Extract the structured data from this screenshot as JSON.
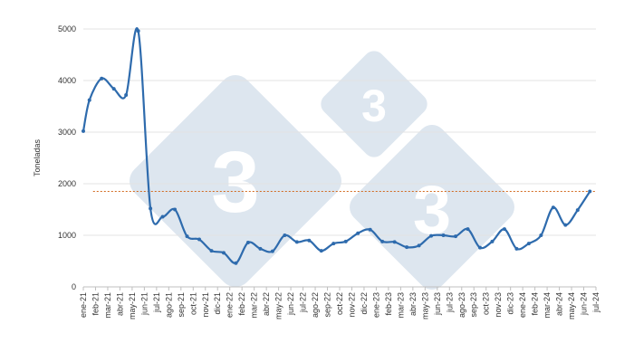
{
  "chart_data": {
    "type": "line",
    "title": "",
    "xlabel": "",
    "ylabel": "Toneladas",
    "ylim": [
      0,
      5000
    ],
    "yticks": [
      0,
      1000,
      2000,
      3000,
      4000,
      5000
    ],
    "grid": true,
    "legend": "none",
    "categories": [
      "ene-21",
      "feb-21",
      "mar-21",
      "abr-21",
      "may-21",
      "jun-21",
      "jul-21",
      "ago-21",
      "sep-21",
      "oct-21",
      "nov-21",
      "dic-21",
      "ene-22",
      "feb-22",
      "mar-22",
      "abr-22",
      "may-22",
      "jun-22",
      "jul-22",
      "ago-22",
      "sep-22",
      "oct-22",
      "nov-22",
      "dic-22",
      "ene-23",
      "feb-23",
      "mar-23",
      "abr-23",
      "may-23",
      "jun-23",
      "jul-23",
      "ago-23",
      "sep-23",
      "oct-23",
      "nov-23",
      "dic-23",
      "ene-24",
      "feb-24",
      "mar-24",
      "abr-24",
      "may-24",
      "jun-24",
      "jul-24"
    ],
    "points": [
      {
        "x": "ene-21",
        "y": 3020
      },
      {
        "x": "ene-21/feb-21",
        "y": 3620
      },
      {
        "x": "feb-21/mar-21",
        "y": 4040
      },
      {
        "x": "mar-21/abr-21",
        "y": 3840
      },
      {
        "x": "abr-21/may-21",
        "y": 3720
      },
      {
        "x": "may-21/jun-21",
        "y": 4960
      },
      {
        "x": "jun-21/jul-21",
        "y": 1520
      },
      {
        "x": "jul-21/ago-21",
        "y": 1360
      },
      {
        "x": "ago-21/sep-21",
        "y": 1500
      },
      {
        "x": "sep-21/oct-21",
        "y": 980
      },
      {
        "x": "oct-21/nov-21",
        "y": 920
      },
      {
        "x": "nov-21/dic-21",
        "y": 700
      },
      {
        "x": "dic-21/ene-22",
        "y": 660
      },
      {
        "x": "ene-22/feb-22",
        "y": 460
      },
      {
        "x": "feb-22/mar-22",
        "y": 860
      },
      {
        "x": "mar-22/abr-22",
        "y": 740
      },
      {
        "x": "abr-22/may-22",
        "y": 690
      },
      {
        "x": "may-22/jun-22",
        "y": 1000
      },
      {
        "x": "jun-22/jul-22",
        "y": 870
      },
      {
        "x": "jul-22/ago-22",
        "y": 900
      },
      {
        "x": "ago-22/sep-22",
        "y": 700
      },
      {
        "x": "sep-22/oct-22",
        "y": 840
      },
      {
        "x": "oct-22/nov-22",
        "y": 880
      },
      {
        "x": "nov-22/dic-22",
        "y": 1040
      },
      {
        "x": "dic-22/ene-23",
        "y": 1110
      },
      {
        "x": "ene-23/feb-23",
        "y": 880
      },
      {
        "x": "feb-23/mar-23",
        "y": 870
      },
      {
        "x": "mar-23/abr-23",
        "y": 770
      },
      {
        "x": "abr-23/may-23",
        "y": 800
      },
      {
        "x": "may-23/jun-23",
        "y": 990
      },
      {
        "x": "jun-23/jul-23",
        "y": 1000
      },
      {
        "x": "jul-23/ago-23",
        "y": 980
      },
      {
        "x": "ago-23/sep-23",
        "y": 1120
      },
      {
        "x": "sep-23/oct-23",
        "y": 760
      },
      {
        "x": "oct-23/nov-23",
        "y": 880
      },
      {
        "x": "nov-23/dic-23",
        "y": 1120
      },
      {
        "x": "dic-23/ene-24",
        "y": 740
      },
      {
        "x": "ene-24/feb-24",
        "y": 840
      },
      {
        "x": "feb-24/mar-24",
        "y": 1000
      },
      {
        "x": "mar-24/abr-24",
        "y": 1540
      },
      {
        "x": "abr-24/may-24",
        "y": 1200
      },
      {
        "x": "may-24/jun-24",
        "y": 1490
      },
      {
        "x": "jun-24/jul-24",
        "y": 1850
      }
    ],
    "reference_line": {
      "y": 1850,
      "color": "#d2691e",
      "style": "dotted"
    },
    "series_color": "#2e6bad"
  }
}
